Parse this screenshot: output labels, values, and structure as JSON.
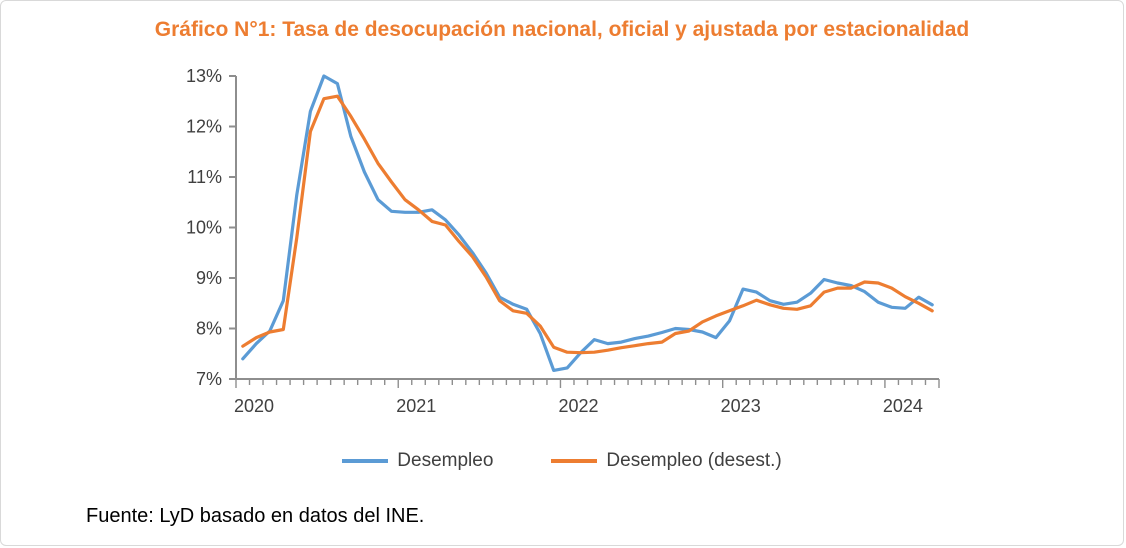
{
  "page": {
    "source_note": "Fuente: LyD basado en datos del INE."
  },
  "chart_data": {
    "type": "line",
    "title": "Gráfico N°1: Tasa de desocupación nacional, oficial y ajustada por estacionalidad",
    "title_color": "#ED7D31",
    "axis_color": "#8E8E8E",
    "tick_label_color": "#404040",
    "grid": false,
    "legend_position": "bottom",
    "y_min": 7,
    "y_max": 13,
    "y_step": 1,
    "y_tick_labels": [
      "7%",
      "8%",
      "9%",
      "10%",
      "11%",
      "12%",
      "13%"
    ],
    "x_tick_labels": [
      "2020",
      "2021",
      "2022",
      "2023",
      "2024"
    ],
    "x_categories": [
      "2020-01",
      "2020-02",
      "2020-03",
      "2020-04",
      "2020-05",
      "2020-06",
      "2020-07",
      "2020-08",
      "2020-09",
      "2020-10",
      "2020-11",
      "2020-12",
      "2021-01",
      "2021-02",
      "2021-03",
      "2021-04",
      "2021-05",
      "2021-06",
      "2021-07",
      "2021-08",
      "2021-09",
      "2021-10",
      "2021-11",
      "2021-12",
      "2022-01",
      "2022-02",
      "2022-03",
      "2022-04",
      "2022-05",
      "2022-06",
      "2022-07",
      "2022-08",
      "2022-09",
      "2022-10",
      "2022-11",
      "2022-12",
      "2023-01",
      "2023-02",
      "2023-03",
      "2023-04",
      "2023-05",
      "2023-06",
      "2023-07",
      "2023-08",
      "2023-09",
      "2023-10",
      "2023-11",
      "2023-12",
      "2024-01",
      "2024-02",
      "2024-03",
      "2024-04"
    ],
    "series": [
      {
        "name": "Desempleo",
        "color": "#5B9BD5",
        "values": [
          7.4,
          7.7,
          7.95,
          8.55,
          10.65,
          12.3,
          13.0,
          12.85,
          11.8,
          11.1,
          10.55,
          10.32,
          10.3,
          10.3,
          10.35,
          10.15,
          9.85,
          9.5,
          9.1,
          8.62,
          8.48,
          8.38,
          7.9,
          7.17,
          7.22,
          7.52,
          7.78,
          7.7,
          7.73,
          7.8,
          7.85,
          7.92,
          8.0,
          7.98,
          7.93,
          7.82,
          8.15,
          8.78,
          8.72,
          8.55,
          8.48,
          8.52,
          8.7,
          8.97,
          8.9,
          8.85,
          8.73,
          8.52,
          8.42,
          8.4,
          8.62,
          8.47
        ]
      },
      {
        "name": "Desempleo (desest.)",
        "color": "#ED7D31",
        "values": [
          7.65,
          7.82,
          7.93,
          7.98,
          9.8,
          11.9,
          12.55,
          12.6,
          12.2,
          11.75,
          11.27,
          10.9,
          10.55,
          10.35,
          10.12,
          10.05,
          9.72,
          9.42,
          9.02,
          8.55,
          8.35,
          8.3,
          8.05,
          7.63,
          7.53,
          7.52,
          7.53,
          7.57,
          7.62,
          7.66,
          7.7,
          7.73,
          7.9,
          7.95,
          8.13,
          8.25,
          8.35,
          8.45,
          8.56,
          8.47,
          8.4,
          8.38,
          8.45,
          8.72,
          8.8,
          8.8,
          8.92,
          8.9,
          8.8,
          8.63,
          8.5,
          8.35
        ]
      }
    ]
  }
}
